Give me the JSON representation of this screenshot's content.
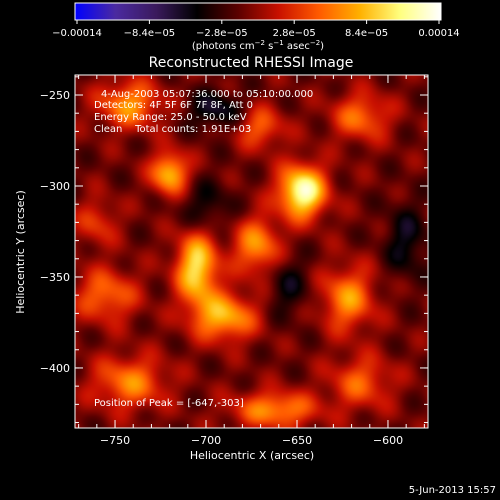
{
  "chart_data": {
    "type": "heatmap",
    "title": "Reconstructed RHESSI Image",
    "xlabel": "Heliocentric X (arcsec)",
    "ylabel": "Heliocentric Y (arcsec)",
    "xlim": [
      -772,
      -578
    ],
    "ylim": [
      -433,
      -239
    ],
    "x_ticks": [
      -750,
      -700,
      -650,
      -600
    ],
    "y_ticks": [
      -250,
      -300,
      -350,
      -400
    ],
    "x_tick_labels": [
      "−750",
      "−700",
      "−650",
      "−600"
    ],
    "y_tick_labels": [
      "−250",
      "−300",
      "−350",
      "−400"
    ],
    "colorbar": {
      "min": -0.00014,
      "max": 0.00014,
      "tick_labels": [
        "−0.00014",
        "−8.4e−05",
        "−2.8e−05",
        "2.8e−05",
        "8.4e−05",
        "0.00014"
      ],
      "unit_prefix": "(photons cm",
      "unit_sup1": "−2",
      "unit_mid": " s",
      "unit_sup2": "−1",
      "unit_suffix": " asec",
      "unit_sup3": "−2",
      "unit_close": ")",
      "colors": [
        "#0000ff",
        "#4b2aa0",
        "#3a1a5c",
        "#000000",
        "#5a0000",
        "#c81000",
        "#ff5a00",
        "#ffb000",
        "#ffff80",
        "#ffffff"
      ]
    },
    "info_lines": [
      "4-Aug-2003 05:07:36.000 to 05:10:00.000",
      "Detectors: 4F 5F 6F 7F 8F, Att 0",
      "Energy Range: 25.0 - 50.0 keV",
      "Clean    Total counts: 1.91E+03"
    ],
    "peak_label": "Position of Peak = [-647,-303]",
    "peak_position": [
      -647,
      -303
    ],
    "sources": [
      {
        "x": -647,
        "y": -303,
        "amp": 1.0,
        "sx": 9,
        "sy": 10
      },
      {
        "x": -720,
        "y": -293,
        "amp": 0.7,
        "sx": 7,
        "sy": 8
      },
      {
        "x": -705,
        "y": -345,
        "amp": 0.8,
        "sx": 8,
        "sy": 14
      },
      {
        "x": -690,
        "y": -372,
        "amp": 0.65,
        "sx": 12,
        "sy": 9
      },
      {
        "x": -672,
        "y": -333,
        "amp": 0.55,
        "sx": 9,
        "sy": 11
      },
      {
        "x": -742,
        "y": -255,
        "amp": 0.55,
        "sx": 12,
        "sy": 9
      },
      {
        "x": -755,
        "y": -360,
        "amp": 0.45,
        "sx": 12,
        "sy": 10
      },
      {
        "x": -742,
        "y": -408,
        "amp": 0.5,
        "sx": 14,
        "sy": 10
      },
      {
        "x": -662,
        "y": -423,
        "amp": 0.55,
        "sx": 16,
        "sy": 7
      },
      {
        "x": -622,
        "y": -362,
        "amp": 0.55,
        "sx": 10,
        "sy": 12
      },
      {
        "x": -615,
        "y": -408,
        "amp": 0.4,
        "sx": 12,
        "sy": 10
      },
      {
        "x": -615,
        "y": -262,
        "amp": 0.45,
        "sx": 11,
        "sy": 9
      },
      {
        "x": -670,
        "y": -268,
        "amp": 0.4,
        "sx": 9,
        "sy": 8
      },
      {
        "x": -760,
        "y": -320,
        "amp": 0.3,
        "sx": 8,
        "sy": 9
      },
      {
        "x": -700,
        "y": -312,
        "amp": -0.25,
        "sx": 10,
        "sy": 10
      },
      {
        "x": -655,
        "y": -355,
        "amp": -0.25,
        "sx": 8,
        "sy": 12
      },
      {
        "x": -695,
        "y": -258,
        "amp": -0.35,
        "sx": 10,
        "sy": 7
      },
      {
        "x": -590,
        "y": -330,
        "amp": -0.3,
        "sx": 8,
        "sy": 14
      }
    ],
    "background_level": -0.08,
    "grid": false
  },
  "footer": {
    "timestamp": "5-Jun-2013 15:57"
  }
}
